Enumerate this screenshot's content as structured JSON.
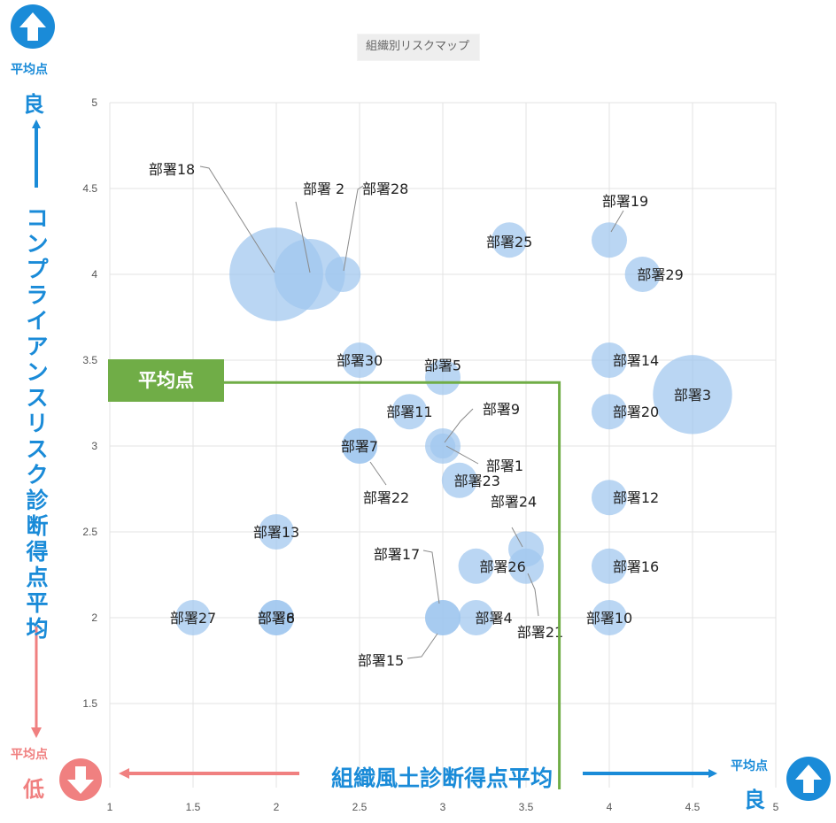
{
  "chart_data": {
    "type": "bubble",
    "title": "組織別リスクマップ",
    "xlabel": "組織風土診断得点平均",
    "ylabel": "コンプライアンスリスク診断得点平均",
    "xlim": [
      1,
      5
    ],
    "ylim": [
      1.5,
      5
    ],
    "x_ticks": [
      "1",
      "1.5",
      "2",
      "2.5",
      "3",
      "3.5",
      "4",
      "4.5",
      "5"
    ],
    "y_ticks": [
      "1.5",
      "2",
      "2.5",
      "3",
      "3.5",
      "4",
      "4.5",
      "5"
    ],
    "grid": true,
    "average_label": "平均点",
    "average": {
      "x": 3.7,
      "y": 3.37
    },
    "points": [
      {
        "label": "部署1",
        "x": 3.0,
        "y": 3.0,
        "size": 0.5
      },
      {
        "label": "部署 2",
        "x": 2.2,
        "y": 4.0,
        "size": 4
      },
      {
        "label": "部署3",
        "x": 4.5,
        "y": 3.3,
        "size": 5
      },
      {
        "label": "部署4",
        "x": 3.2,
        "y": 2.0,
        "size": 1
      },
      {
        "label": "部署5",
        "x": 3.0,
        "y": 3.4,
        "size": 1
      },
      {
        "label": "部署6",
        "x": 2.0,
        "y": 2.0,
        "size": 1
      },
      {
        "label": "部署7",
        "x": 2.5,
        "y": 3.0,
        "size": 1
      },
      {
        "label": "部署8",
        "x": 2.0,
        "y": 2.0,
        "size": 1
      },
      {
        "label": "部署9",
        "x": 3.0,
        "y": 3.0,
        "size": 1
      },
      {
        "label": "部署10",
        "x": 4.0,
        "y": 2.0,
        "size": 1
      },
      {
        "label": "部署11",
        "x": 2.8,
        "y": 3.2,
        "size": 1
      },
      {
        "label": "部署12",
        "x": 4.0,
        "y": 2.7,
        "size": 1
      },
      {
        "label": "部署13",
        "x": 2.0,
        "y": 2.5,
        "size": 1
      },
      {
        "label": "部署14",
        "x": 4.0,
        "y": 3.5,
        "size": 1
      },
      {
        "label": "部署15",
        "x": 3.0,
        "y": 2.0,
        "size": 1
      },
      {
        "label": "部署16",
        "x": 4.0,
        "y": 2.3,
        "size": 1
      },
      {
        "label": "部署17",
        "x": 3.0,
        "y": 2.0,
        "size": 1
      },
      {
        "label": "部署18",
        "x": 2.0,
        "y": 4.0,
        "size": 7
      },
      {
        "label": "部署19",
        "x": 4.0,
        "y": 4.2,
        "size": 1
      },
      {
        "label": "部署20",
        "x": 4.0,
        "y": 3.2,
        "size": 1
      },
      {
        "label": "部署21",
        "x": 3.5,
        "y": 2.3,
        "size": 1
      },
      {
        "label": "部署22",
        "x": 2.5,
        "y": 3.0,
        "size": 1
      },
      {
        "label": "部署23",
        "x": 3.1,
        "y": 2.8,
        "size": 1
      },
      {
        "label": "部署24",
        "x": 3.5,
        "y": 2.4,
        "size": 1
      },
      {
        "label": "部署25",
        "x": 3.4,
        "y": 4.2,
        "size": 1
      },
      {
        "label": "部署26",
        "x": 3.2,
        "y": 2.3,
        "size": 1
      },
      {
        "label": "部署27",
        "x": 1.5,
        "y": 2.0,
        "size": 1
      },
      {
        "label": "部署28",
        "x": 2.4,
        "y": 4.0,
        "size": 1
      },
      {
        "label": "部署29",
        "x": 4.2,
        "y": 4.0,
        "size": 1
      },
      {
        "label": "部署30",
        "x": 2.5,
        "y": 3.5,
        "size": 1
      }
    ]
  },
  "corners": {
    "top_left_point": "平均点",
    "top_left_word": "良",
    "bottom_left_point": "平均点",
    "bottom_left_word": "低",
    "bottom_right_point": "平均点",
    "bottom_right_word": "良"
  },
  "colors": {
    "bubble": "#9fc6ef",
    "average_line": "#70ad47",
    "good": "#1a8bd8",
    "low": "#f08080"
  }
}
